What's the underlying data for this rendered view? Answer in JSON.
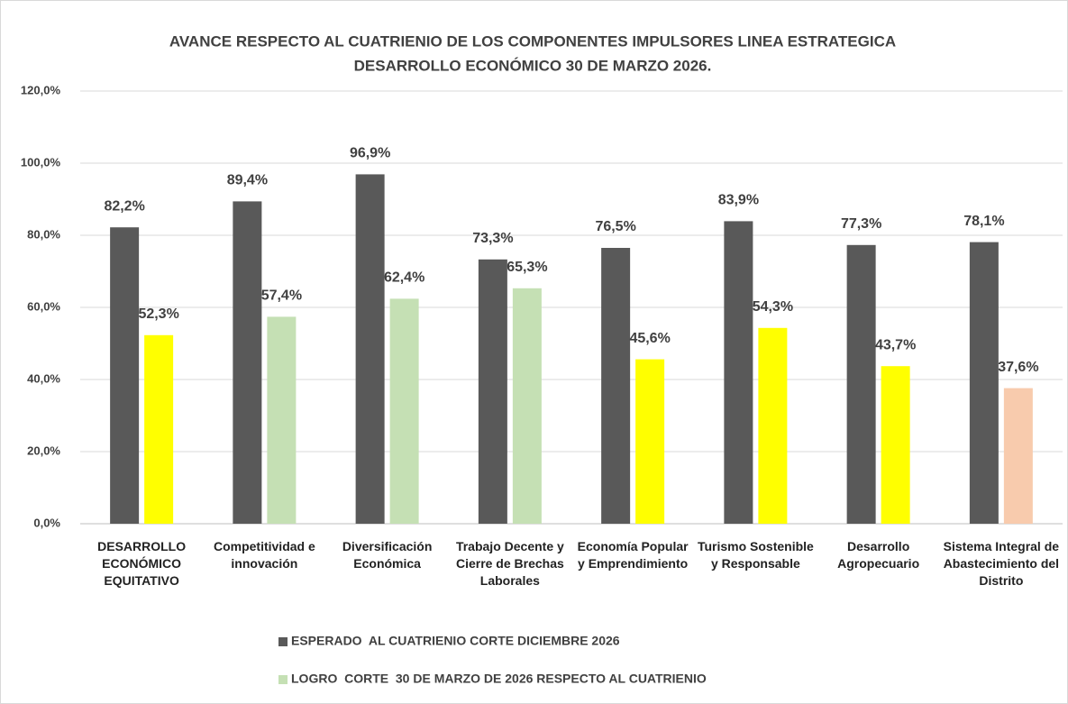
{
  "chart_data": {
    "type": "bar",
    "title": [
      "AVANCE RESPECTO AL CUATRIENIO DE LOS COMPONENTES IMPULSORES LINEA ESTRATEGICA",
      "DESARROLLO ECONÓMICO 30 DE MARZO 2026."
    ],
    "categories": [
      "DESARROLLO ECONÓMICO EQUITATIVO",
      "Competitividad e innovación",
      "Diversificación Económica",
      "Trabajo Decente y Cierre de Brechas Laborales",
      "Economía Popular y Emprendimiento",
      "Turismo Sostenible y Responsable",
      "Desarrollo Agropecuario",
      "Sistema Integral de Abastecimiento del Distrito"
    ],
    "series": [
      {
        "name": "ESPERADO  AL CUATRIENIO CORTE DICIEMBRE 2026",
        "color": "#595959",
        "values": [
          82.2,
          89.4,
          96.9,
          73.3,
          76.5,
          83.9,
          77.3,
          78.1
        ],
        "value_labels": [
          "82,2%",
          "89,4%",
          "96,9%",
          "73,3%",
          "76,5%",
          "83,9%",
          "77,3%",
          "78,1%"
        ]
      },
      {
        "name": "LOGRO  CORTE  30 DE MARZO DE 2026 RESPECTO AL CUATRIENIO",
        "color": "#c5e0b4",
        "colors": [
          "#ffff00",
          "#c5e0b4",
          "#c5e0b4",
          "#c5e0b4",
          "#ffff00",
          "#ffff00",
          "#ffff00",
          "#f8cbad"
        ],
        "values": [
          52.3,
          57.4,
          62.4,
          65.3,
          45.6,
          54.3,
          43.7,
          37.6
        ],
        "value_labels": [
          "52,3%",
          "57,4%",
          "62,4%",
          "65,3%",
          "45,6%",
          "54,3%",
          "43,7%",
          "37,6%"
        ]
      }
    ],
    "ylim": [
      0,
      120
    ],
    "yticks": [
      {
        "value": 0,
        "label": "0,0%"
      },
      {
        "value": 20,
        "label": "20,0%"
      },
      {
        "value": 40,
        "label": "40,0%"
      },
      {
        "value": 60,
        "label": "60,0%"
      },
      {
        "value": 80,
        "label": "80,0%"
      },
      {
        "value": 100,
        "label": "100,0%"
      },
      {
        "value": 120,
        "label": "120,0%"
      }
    ],
    "grid": true
  }
}
